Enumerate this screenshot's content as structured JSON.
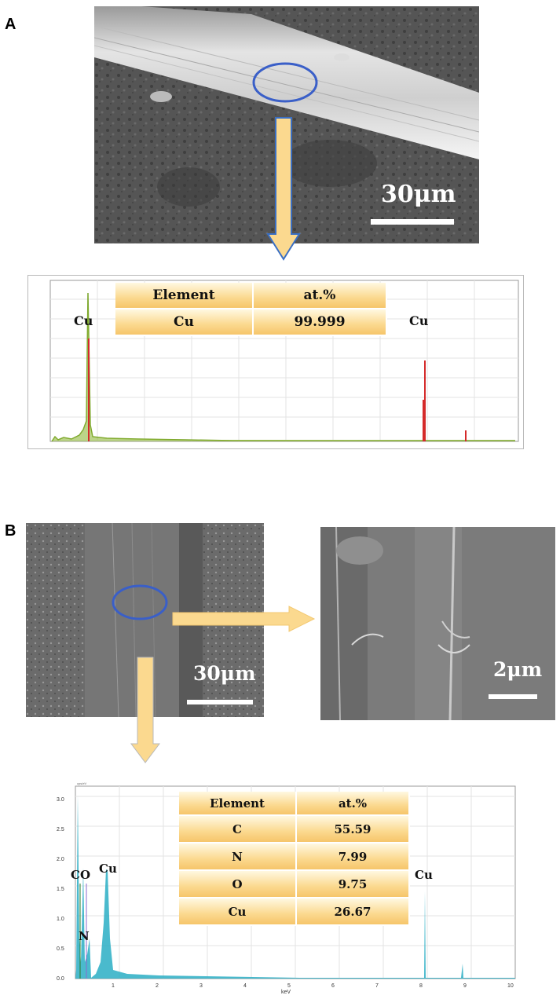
{
  "panel_a": {
    "label": "A",
    "sem_scale": "30μm",
    "peaks": {
      "left": "Cu",
      "right": "Cu"
    },
    "table": {
      "headers": [
        "Element",
        "at.%"
      ],
      "rows": [
        [
          "Cu",
          "99.999"
        ]
      ]
    }
  },
  "panel_b": {
    "label": "B",
    "sem_left_scale": "30μm",
    "sem_right_scale": "2μm",
    "spectrum": {
      "y_unit": "cps/eV",
      "x_unit": "keV",
      "y_ticks": [
        "0.0",
        "0.5",
        "1.0",
        "1.5",
        "2.0",
        "2.5",
        "3.0"
      ],
      "x_ticks": [
        "1",
        "2",
        "3",
        "4",
        "5",
        "6",
        "7",
        "8",
        "9",
        "10"
      ]
    },
    "peaks": {
      "c": "C",
      "o": "O",
      "n": "N",
      "cu_left": "Cu",
      "cu_right": "Cu"
    },
    "table": {
      "headers": [
        "Element",
        "at.%"
      ],
      "rows": [
        [
          "C",
          "55.59"
        ],
        [
          "N",
          "7.99"
        ],
        [
          "O",
          "9.75"
        ],
        [
          "Cu",
          "26.67"
        ]
      ]
    }
  },
  "colors": {
    "arrow_fill": "#fbd98f",
    "arrow_stroke": "#3a6fc4",
    "circle": "#3a5fc8",
    "spectrum_a": "#7aa52a",
    "spectrum_a_peaks": "#d42a2a",
    "spectrum_b": "#2aaec4",
    "table_gradient": "#f6c56a"
  }
}
